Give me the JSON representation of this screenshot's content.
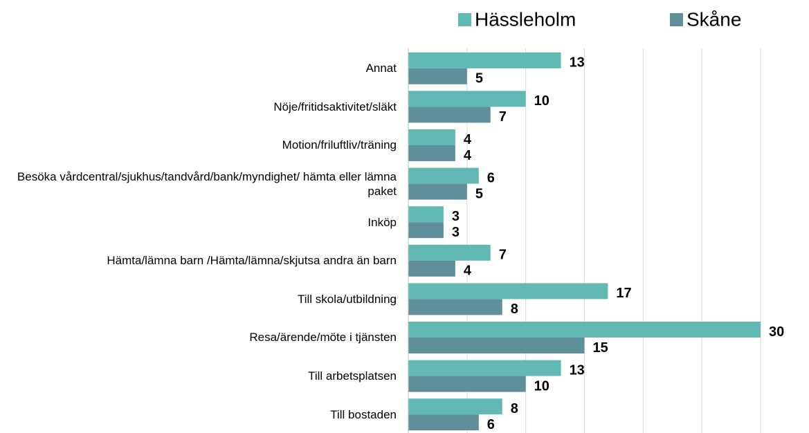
{
  "chart_data": {
    "type": "bar",
    "orientation": "horizontal",
    "categories": [
      "Annat",
      "Nöje/fritidsaktivitet/släkt",
      "Motion/friluftliv/träning",
      "Besöka vårdcentral/sjukhus/tandvård/bank/myndighet/ hämta eller lämna paket",
      "Inköp",
      "Hämta/lämna barn /Hämta/lämna/skjutsa andra än barn",
      "Till skola/utbildning",
      "Resa/ärende/möte i tjänsten",
      "Till arbetsplatsen",
      "Till bostaden"
    ],
    "series": [
      {
        "name": "Hässleholm",
        "color": "#62b8b3",
        "values": [
          13,
          10,
          4,
          6,
          3,
          7,
          17,
          30,
          13,
          8
        ]
      },
      {
        "name": "Skåne",
        "color": "#5f8f99",
        "values": [
          5,
          7,
          4,
          5,
          3,
          4,
          8,
          15,
          10,
          6
        ]
      }
    ],
    "xlim": [
      0,
      30
    ],
    "xticks": [
      0,
      5,
      10,
      15,
      20,
      25,
      30
    ],
    "grid": true,
    "legend": "top"
  }
}
